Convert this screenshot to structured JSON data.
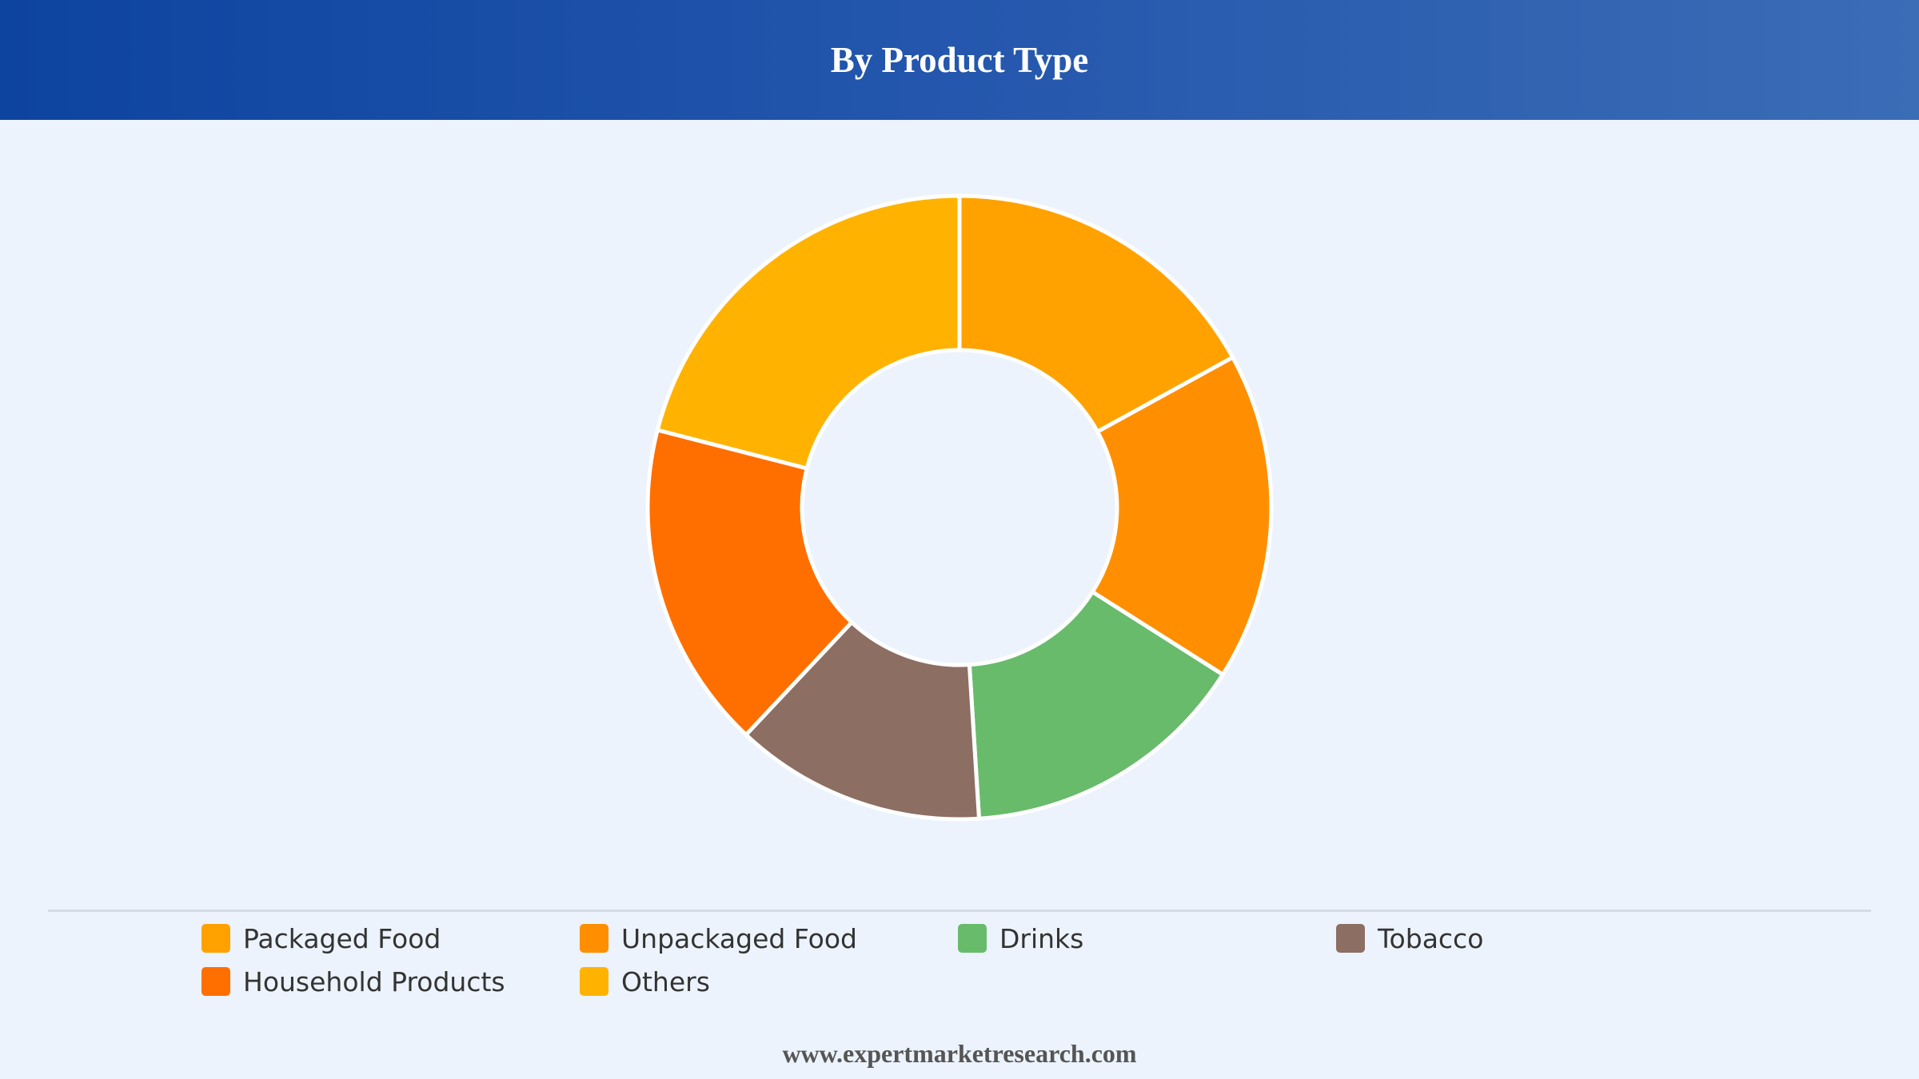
{
  "header": {
    "title": "By Product Type"
  },
  "chart_data": {
    "type": "pie",
    "variant": "donut",
    "title": "By Product Type",
    "categories": [
      "Packaged Food",
      "Unpackaged Food",
      "Drinks",
      "Tobacco",
      "Household Products",
      "Others"
    ],
    "values": [
      17,
      17,
      15,
      13,
      17,
      21
    ],
    "colors": [
      "#ffa200",
      "#ff8f00",
      "#69bb6c",
      "#8d6e63",
      "#ff6f00",
      "#ffb300"
    ],
    "legend_position": "bottom"
  },
  "legend": {
    "items": [
      {
        "label": "Packaged Food",
        "color": "#ffa200"
      },
      {
        "label": "Unpackaged Food",
        "color": "#ff8f00"
      },
      {
        "label": "Drinks",
        "color": "#69bb6c"
      },
      {
        "label": "Tobacco",
        "color": "#8d6e63"
      },
      {
        "label": "Household Products",
        "color": "#ff6f00"
      },
      {
        "label": "Others",
        "color": "#ffb300"
      }
    ]
  },
  "footer": {
    "text": "www.expertmarketresearch.com"
  }
}
